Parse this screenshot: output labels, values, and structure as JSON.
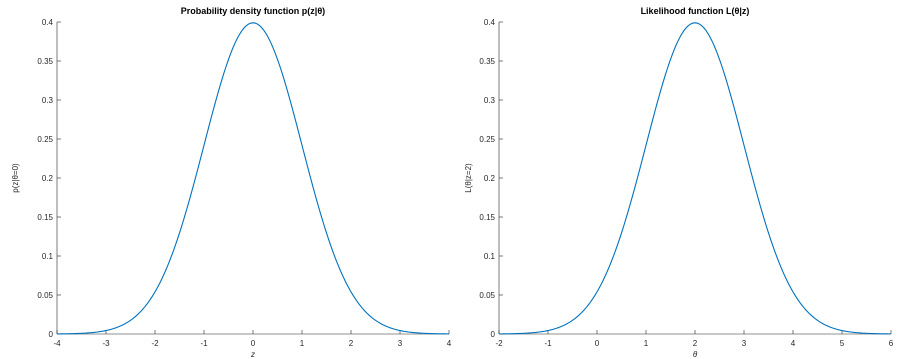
{
  "chart_data": [
    {
      "type": "line",
      "title": "Probability density function p(z|θ)",
      "xlabel": "z",
      "ylabel": "p(z|θ=0)",
      "xlim": [
        -4,
        4
      ],
      "ylim": [
        0,
        0.4
      ],
      "xticks": [
        "-4",
        "-3",
        "-2",
        "-1",
        "0",
        "1",
        "2",
        "3",
        "4"
      ],
      "yticks": [
        "0",
        "0.05",
        "0.1",
        "0.15",
        "0.2",
        "0.25",
        "0.3",
        "0.35",
        "0.4"
      ],
      "grid": false,
      "color": "#0072BD",
      "x": [
        -4,
        -3.5,
        -3,
        -2.5,
        -2,
        -1.5,
        -1,
        -0.5,
        0,
        0.5,
        1,
        1.5,
        2,
        2.5,
        3,
        3.5,
        4
      ],
      "y": [
        0.0001,
        0.0009,
        0.0044,
        0.0175,
        0.054,
        0.1295,
        0.242,
        0.3521,
        0.3989,
        0.3521,
        0.242,
        0.1295,
        0.054,
        0.0175,
        0.0044,
        0.0009,
        0.0001
      ]
    },
    {
      "type": "line",
      "title": "Likelihood function L(θ|z)",
      "xlabel": "θ",
      "ylabel": "L(θ|z=2)",
      "xlim": [
        -2,
        6
      ],
      "ylim": [
        0,
        0.4
      ],
      "xticks": [
        "-2",
        "-1",
        "0",
        "1",
        "2",
        "3",
        "4",
        "5",
        "6"
      ],
      "yticks": [
        "0",
        "0.05",
        "0.1",
        "0.15",
        "0.2",
        "0.25",
        "0.3",
        "0.35",
        "0.4"
      ],
      "grid": false,
      "color": "#0072BD",
      "x": [
        -2,
        -1.5,
        -1,
        -0.5,
        0,
        0.5,
        1,
        1.5,
        2,
        2.5,
        3,
        3.5,
        4,
        4.5,
        5,
        5.5,
        6
      ],
      "y": [
        0.0001,
        0.0009,
        0.0044,
        0.0175,
        0.054,
        0.1295,
        0.242,
        0.3521,
        0.3989,
        0.3521,
        0.242,
        0.1295,
        0.054,
        0.0175,
        0.0044,
        0.0009,
        0.0001
      ]
    }
  ]
}
